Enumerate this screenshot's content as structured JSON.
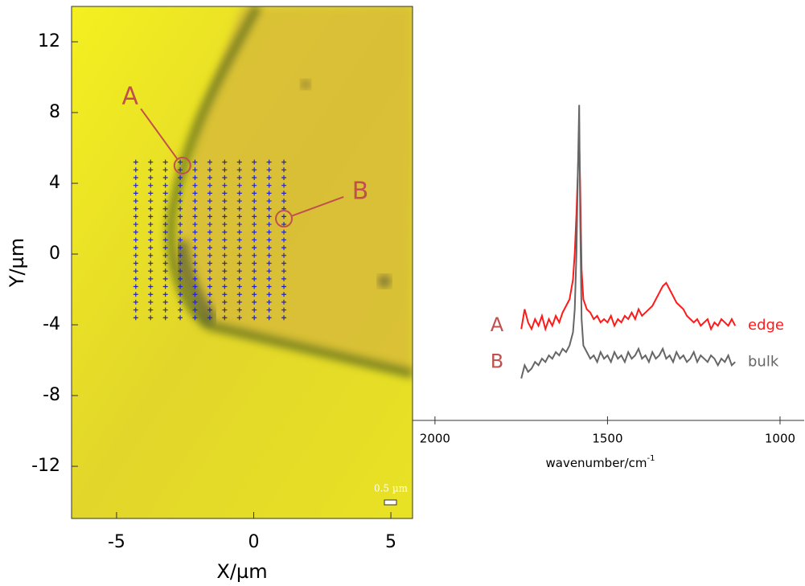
{
  "chart_data": [
    {
      "type": "map",
      "x_label": "X/µm",
      "y_label": "Y/µm",
      "xlim": [
        -6.64,
        5.79
      ],
      "ylim": [
        -14.95,
        14.0
      ],
      "xticks": [
        -5,
        0,
        5
      ],
      "yticks": [
        -12,
        -8,
        -4,
        0,
        4,
        8,
        12
      ],
      "grid_points": {
        "color": "#2323c8",
        "x": [
          -4.3,
          -3.76,
          -3.22,
          -2.68,
          -2.14,
          -1.6,
          -1.06,
          -0.52,
          0.02,
          0.56,
          1.1
        ],
        "y": [
          5.2,
          4.76,
          4.32,
          3.88,
          3.44,
          3.0,
          2.56,
          2.12,
          1.68,
          1.24,
          0.8,
          0.36,
          -0.08,
          -0.52,
          -0.96,
          -1.4,
          -1.84,
          -2.28,
          -2.72,
          -3.16,
          -3.6
        ]
      },
      "annotations": [
        {
          "text": "A",
          "x": -2.6,
          "y": 5.0
        },
        {
          "text": "B",
          "x": 1.1,
          "y": 2.0
        }
      ],
      "annotation_color": "#c0504d",
      "scale_bar_label": "0.5 µm"
    },
    {
      "type": "line",
      "x_label": "wavenumber/cm",
      "x_label_superscript": "-1",
      "xlim": [
        2065,
        930
      ],
      "ylim": [
        0,
        100
      ],
      "xticks": [
        2000,
        1500,
        1000
      ],
      "label_color": "#c0504d",
      "x": [
        1750,
        1740,
        1730,
        1720,
        1710,
        1700,
        1690,
        1680,
        1670,
        1660,
        1650,
        1640,
        1630,
        1620,
        1610,
        1600,
        1595,
        1590,
        1585,
        1582,
        1579,
        1575,
        1570,
        1560,
        1550,
        1540,
        1530,
        1520,
        1510,
        1500,
        1490,
        1480,
        1470,
        1460,
        1450,
        1440,
        1430,
        1420,
        1410,
        1400,
        1390,
        1380,
        1370,
        1360,
        1350,
        1340,
        1330,
        1320,
        1310,
        1300,
        1290,
        1280,
        1270,
        1260,
        1250,
        1240,
        1230,
        1220,
        1210,
        1200,
        1190,
        1180,
        1170,
        1160,
        1150,
        1140,
        1130
      ],
      "series": [
        {
          "name": "edge",
          "label": "A",
          "color": "#ff1a1a",
          "values": [
            27,
            33,
            29,
            27,
            30,
            28,
            31,
            27,
            30,
            28,
            31,
            29,
            32,
            34,
            36,
            42,
            50,
            62,
            78,
            85,
            70,
            45,
            36,
            33,
            32,
            30,
            31,
            29,
            30,
            29,
            31,
            28,
            30,
            29,
            31,
            30,
            32,
            30,
            33,
            31,
            32,
            33,
            34,
            36,
            38,
            40,
            41,
            39,
            37,
            35,
            34,
            33,
            31,
            30,
            29,
            30,
            28,
            29,
            30,
            27,
            29,
            28,
            30,
            29,
            28,
            30,
            28
          ]
        },
        {
          "name": "bulk",
          "label": "B",
          "color": "#666666",
          "values": [
            12,
            16,
            14,
            15,
            17,
            16,
            18,
            17,
            19,
            18,
            20,
            19,
            21,
            20,
            22,
            26,
            33,
            50,
            80,
            95,
            60,
            30,
            22,
            20,
            18,
            19,
            17,
            20,
            18,
            19,
            17,
            20,
            18,
            19,
            17,
            20,
            18,
            19,
            21,
            18,
            19,
            17,
            20,
            18,
            19,
            21,
            18,
            19,
            17,
            20,
            18,
            19,
            17,
            18,
            20,
            17,
            19,
            18,
            17,
            19,
            18,
            16,
            18,
            17,
            19,
            16,
            17
          ]
        }
      ]
    }
  ]
}
